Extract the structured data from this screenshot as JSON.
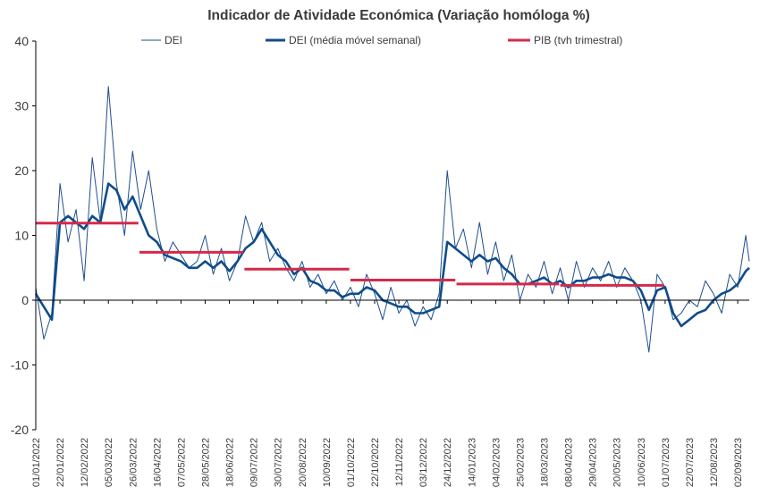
{
  "chart_data": {
    "type": "line",
    "title": "Indicador de Atividade Económica (Variação homóloga %)",
    "xlabel": "",
    "ylabel": "",
    "ylim": [
      -20,
      40
    ],
    "yticks": [
      -20,
      -10,
      0,
      10,
      20,
      30,
      40
    ],
    "x_range": [
      "01/01/2022",
      "12/09/2023"
    ],
    "xtick_labels": [
      "01/01/2022",
      "22/01/2022",
      "12/02/2022",
      "05/03/2022",
      "26/03/2022",
      "16/04/2022",
      "07/05/2022",
      "28/05/2022",
      "18/06/2022",
      "09/07/2022",
      "30/07/2022",
      "20/08/2022",
      "10/09/2022",
      "01/10/2022",
      "22/10/2022",
      "12/11/2022",
      "03/12/2022",
      "24/12/2022",
      "14/01/2023",
      "04/02/2023",
      "25/02/2023",
      "18/03/2023",
      "08/04/2023",
      "29/04/2023",
      "20/05/2023",
      "10/06/2023",
      "01/07/2023",
      "22/07/2023",
      "12/08/2023",
      "02/09/2023"
    ],
    "legend": [
      "DEI",
      "DEI (média móvel semanal)",
      "PIB (tvh trimestral)"
    ],
    "legend_position": "top",
    "grid": false,
    "colors": {
      "dei": "#1f4e8c",
      "dei_ma": "#0f4c8a",
      "pib": "#d42a4a",
      "axis": "#000000",
      "text": "#3a3a3a"
    },
    "series": [
      {
        "name": "DEI",
        "style": "thin-line",
        "x": [
          "01/01/2022",
          "08/01/2022",
          "15/01/2022",
          "22/01/2022",
          "29/01/2022",
          "05/02/2022",
          "12/02/2022",
          "19/02/2022",
          "26/02/2022",
          "05/03/2022",
          "12/03/2022",
          "19/03/2022",
          "26/03/2022",
          "02/04/2022",
          "09/04/2022",
          "16/04/2022",
          "23/04/2022",
          "30/04/2022",
          "07/05/2022",
          "14/05/2022",
          "21/05/2022",
          "28/05/2022",
          "04/06/2022",
          "11/06/2022",
          "18/06/2022",
          "25/06/2022",
          "02/07/2022",
          "09/07/2022",
          "16/07/2022",
          "23/07/2022",
          "30/07/2022",
          "06/08/2022",
          "13/08/2022",
          "20/08/2022",
          "27/08/2022",
          "03/09/2022",
          "10/09/2022",
          "17/09/2022",
          "24/09/2022",
          "01/10/2022",
          "08/10/2022",
          "15/10/2022",
          "22/10/2022",
          "29/10/2022",
          "05/11/2022",
          "12/11/2022",
          "19/11/2022",
          "26/11/2022",
          "03/12/2022",
          "10/12/2022",
          "17/12/2022",
          "24/12/2022",
          "31/12/2022",
          "07/01/2023",
          "14/01/2023",
          "21/01/2023",
          "28/01/2023",
          "04/02/2023",
          "11/02/2023",
          "18/02/2023",
          "25/02/2023",
          "04/03/2023",
          "11/03/2023",
          "18/03/2023",
          "25/03/2023",
          "01/04/2023",
          "08/04/2023",
          "15/04/2023",
          "22/04/2023",
          "29/04/2023",
          "06/05/2023",
          "13/05/2023",
          "20/05/2023",
          "27/05/2023",
          "03/06/2023",
          "10/06/2023",
          "17/06/2023",
          "24/06/2023",
          "01/07/2023",
          "08/07/2023",
          "15/07/2023",
          "22/07/2023",
          "29/07/2023",
          "05/08/2023",
          "12/08/2023",
          "19/08/2023",
          "26/08/2023",
          "02/09/2023",
          "09/09/2023",
          "12/09/2023"
        ],
        "values": [
          2,
          -6,
          -2,
          18,
          9,
          14,
          3,
          22,
          12,
          33,
          18,
          10,
          23,
          14,
          20,
          11,
          6,
          9,
          7,
          5,
          6,
          10,
          4,
          8,
          3,
          6,
          13,
          9,
          12,
          6,
          8,
          5,
          3,
          6,
          2,
          4,
          1,
          3,
          0,
          2,
          -1,
          4,
          1,
          -3,
          2,
          -2,
          0,
          -4,
          -1,
          -3,
          1,
          20,
          8,
          11,
          5,
          12,
          4,
          9,
          3,
          7,
          0,
          4,
          2,
          6,
          1,
          5,
          0,
          6,
          2,
          5,
          3,
          6,
          2,
          5,
          3,
          0,
          -8,
          4,
          2,
          -3,
          -2,
          0,
          -1,
          3,
          1,
          -2,
          4,
          2,
          10,
          6
        ]
      },
      {
        "name": "DEI (média móvel semanal)",
        "style": "thick-line",
        "x": [
          "01/01/2022",
          "08/01/2022",
          "15/01/2022",
          "22/01/2022",
          "29/01/2022",
          "05/02/2022",
          "12/02/2022",
          "19/02/2022",
          "26/02/2022",
          "05/03/2022",
          "12/03/2022",
          "19/03/2022",
          "26/03/2022",
          "02/04/2022",
          "09/04/2022",
          "16/04/2022",
          "23/04/2022",
          "30/04/2022",
          "07/05/2022",
          "14/05/2022",
          "21/05/2022",
          "28/05/2022",
          "04/06/2022",
          "11/06/2022",
          "18/06/2022",
          "25/06/2022",
          "02/07/2022",
          "09/07/2022",
          "16/07/2022",
          "23/07/2022",
          "30/07/2022",
          "06/08/2022",
          "13/08/2022",
          "20/08/2022",
          "27/08/2022",
          "03/09/2022",
          "10/09/2022",
          "17/09/2022",
          "24/09/2022",
          "01/10/2022",
          "08/10/2022",
          "15/10/2022",
          "22/10/2022",
          "29/10/2022",
          "05/11/2022",
          "12/11/2022",
          "19/11/2022",
          "26/11/2022",
          "03/12/2022",
          "10/12/2022",
          "17/12/2022",
          "24/12/2022",
          "31/12/2022",
          "07/01/2023",
          "14/01/2023",
          "21/01/2023",
          "28/01/2023",
          "04/02/2023",
          "11/02/2023",
          "18/02/2023",
          "25/02/2023",
          "04/03/2023",
          "11/03/2023",
          "18/03/2023",
          "25/03/2023",
          "01/04/2023",
          "08/04/2023",
          "15/04/2023",
          "22/04/2023",
          "29/04/2023",
          "06/05/2023",
          "13/05/2023",
          "20/05/2023",
          "27/05/2023",
          "03/06/2023",
          "10/06/2023",
          "17/06/2023",
          "24/06/2023",
          "01/07/2023",
          "08/07/2023",
          "15/07/2023",
          "22/07/2023",
          "29/07/2023",
          "05/08/2023",
          "12/08/2023",
          "19/08/2023",
          "26/08/2023",
          "02/09/2023",
          "09/09/2023",
          "12/09/2023"
        ],
        "values": [
          1,
          -1,
          -3,
          12,
          13,
          12,
          11,
          13,
          12,
          18,
          17,
          14,
          16,
          13,
          10,
          9,
          7,
          6.5,
          6,
          5,
          5,
          6,
          5,
          6,
          4.5,
          6,
          8,
          9,
          11,
          9,
          7,
          6,
          4,
          5,
          3,
          2.5,
          1.5,
          1.5,
          0.5,
          1,
          1,
          2,
          1.5,
          0,
          -0.5,
          -1,
          -1,
          -2,
          -2,
          -1.5,
          -1,
          9,
          8,
          7,
          6,
          7,
          6,
          6.5,
          5,
          4,
          2.5,
          2.5,
          3,
          3.5,
          2.5,
          3,
          2,
          3,
          3,
          3.5,
          3.5,
          4,
          3.5,
          3.5,
          3,
          1.5,
          -1.5,
          1.5,
          2,
          -2,
          -4,
          -3,
          -2,
          -1.5,
          0,
          1,
          1.5,
          2.5,
          4.5,
          5
        ]
      },
      {
        "name": "PIB (tvh trimestral)",
        "style": "step-segments",
        "segments": [
          {
            "from": "01/01/2022",
            "to": "31/03/2022",
            "value": 11.9
          },
          {
            "from": "01/04/2022",
            "to": "30/06/2022",
            "value": 7.4
          },
          {
            "from": "01/07/2022",
            "to": "30/09/2022",
            "value": 4.8
          },
          {
            "from": "01/10/2022",
            "to": "31/12/2022",
            "value": 3.1
          },
          {
            "from": "01/01/2023",
            "to": "31/03/2023",
            "value": 2.5
          },
          {
            "from": "01/04/2023",
            "to": "30/06/2023",
            "value": 2.3
          }
        ]
      }
    ]
  }
}
